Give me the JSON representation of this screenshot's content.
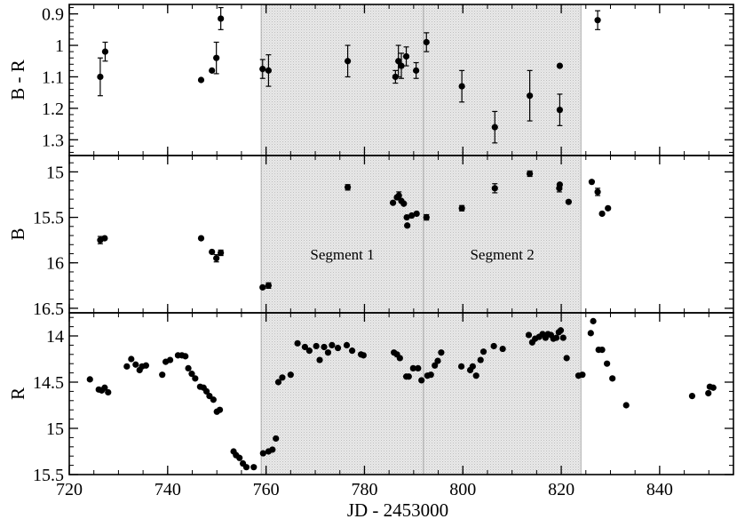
{
  "chart_data": {
    "type": "scatter",
    "xlabel": "JD - 2453000",
    "xlim": [
      720,
      855
    ],
    "x_ticks": [
      "720",
      "740",
      "760",
      "780",
      "800",
      "820",
      "840"
    ],
    "shaded_regions": [
      {
        "label": "Segment 1",
        "x": [
          759,
          792
        ]
      },
      {
        "label": "Segment 2",
        "x": [
          792,
          824
        ]
      }
    ],
    "panels": [
      {
        "ylabel": "B - R",
        "ylim": [
          1.35,
          0.87
        ],
        "y_ticks": [
          "0.9",
          "1",
          "1.1",
          "1.2",
          "1.3"
        ],
        "points": [
          {
            "x": 726.3,
            "y": 1.1,
            "err": 0.06
          },
          {
            "x": 727.3,
            "y": 1.02,
            "err": 0.03
          },
          {
            "x": 746.8,
            "y": 1.11,
            "err": 0.0
          },
          {
            "x": 749.0,
            "y": 1.08,
            "err": 0.0
          },
          {
            "x": 749.9,
            "y": 1.04,
            "err": 0.05
          },
          {
            "x": 750.8,
            "y": 0.915,
            "err": 0.035
          },
          {
            "x": 759.3,
            "y": 1.075,
            "err": 0.03
          },
          {
            "x": 760.5,
            "y": 1.08,
            "err": 0.05
          },
          {
            "x": 776.6,
            "y": 1.05,
            "err": 0.05
          },
          {
            "x": 786.3,
            "y": 1.1,
            "err": 0.02
          },
          {
            "x": 786.9,
            "y": 1.05,
            "err": 0.05
          },
          {
            "x": 787.5,
            "y": 1.065,
            "err": 0.04
          },
          {
            "x": 788.5,
            "y": 1.035,
            "err": 0.03
          },
          {
            "x": 790.5,
            "y": 1.08,
            "err": 0.025
          },
          {
            "x": 792.6,
            "y": 0.99,
            "err": 0.03
          },
          {
            "x": 799.8,
            "y": 1.13,
            "err": 0.05
          },
          {
            "x": 806.5,
            "y": 1.26,
            "err": 0.05
          },
          {
            "x": 813.6,
            "y": 1.16,
            "err": 0.08
          },
          {
            "x": 819.7,
            "y": 1.065,
            "err": 0.0
          },
          {
            "x": 819.7,
            "y": 1.205,
            "err": 0.05
          },
          {
            "x": 827.4,
            "y": 0.92,
            "err": 0.03
          }
        ]
      },
      {
        "ylabel": "B",
        "ylim": [
          16.55,
          14.82
        ],
        "y_ticks": [
          "15",
          "15.5",
          "16",
          "16.5"
        ],
        "annotations": [
          "Segment 1",
          "Segment 2"
        ],
        "points": [
          {
            "x": 726.3,
            "y": 15.75,
            "err": 0.04
          },
          {
            "x": 727.2,
            "y": 15.73,
            "err": 0.0
          },
          {
            "x": 746.8,
            "y": 15.73,
            "err": 0.0
          },
          {
            "x": 749.0,
            "y": 15.88,
            "err": 0.0
          },
          {
            "x": 749.9,
            "y": 15.95,
            "err": 0.04
          },
          {
            "x": 750.8,
            "y": 15.89,
            "err": 0.03
          },
          {
            "x": 759.3,
            "y": 16.27,
            "err": 0.0
          },
          {
            "x": 760.5,
            "y": 16.25,
            "err": 0.03
          },
          {
            "x": 776.6,
            "y": 15.17,
            "err": 0.03
          },
          {
            "x": 785.8,
            "y": 15.34,
            "err": 0.0
          },
          {
            "x": 786.6,
            "y": 15.28,
            "err": 0.0
          },
          {
            "x": 787.0,
            "y": 15.26,
            "err": 0.04
          },
          {
            "x": 787.5,
            "y": 15.32,
            "err": 0.0
          },
          {
            "x": 788.0,
            "y": 15.35,
            "err": 0.0
          },
          {
            "x": 788.6,
            "y": 15.5,
            "err": 0.0
          },
          {
            "x": 788.7,
            "y": 15.59,
            "err": 0.0
          },
          {
            "x": 789.6,
            "y": 15.48,
            "err": 0.0
          },
          {
            "x": 790.6,
            "y": 15.46,
            "err": 0.0
          },
          {
            "x": 792.6,
            "y": 15.5,
            "err": 0.03
          },
          {
            "x": 799.8,
            "y": 15.4,
            "err": 0.03
          },
          {
            "x": 806.5,
            "y": 15.18,
            "err": 0.05
          },
          {
            "x": 813.6,
            "y": 15.02,
            "err": 0.03
          },
          {
            "x": 819.6,
            "y": 15.18,
            "err": 0.04
          },
          {
            "x": 819.7,
            "y": 15.14,
            "err": 0.0
          },
          {
            "x": 821.5,
            "y": 15.33,
            "err": 0.0
          },
          {
            "x": 826.2,
            "y": 15.11,
            "err": 0.0
          },
          {
            "x": 827.4,
            "y": 15.22,
            "err": 0.04
          },
          {
            "x": 828.3,
            "y": 15.46,
            "err": 0.0
          },
          {
            "x": 829.5,
            "y": 15.4,
            "err": 0.0
          }
        ]
      },
      {
        "ylabel": "R",
        "ylim": [
          15.5,
          13.75
        ],
        "y_ticks": [
          "14",
          "14.5",
          "15",
          "15.5"
        ],
        "points": [
          {
            "x": 724.2,
            "y": 14.47
          },
          {
            "x": 726.0,
            "y": 14.58
          },
          {
            "x": 726.6,
            "y": 14.59
          },
          {
            "x": 727.2,
            "y": 14.56
          },
          {
            "x": 727.9,
            "y": 14.61
          },
          {
            "x": 731.7,
            "y": 14.33
          },
          {
            "x": 732.6,
            "y": 14.25
          },
          {
            "x": 733.5,
            "y": 14.31
          },
          {
            "x": 734.3,
            "y": 14.37
          },
          {
            "x": 734.8,
            "y": 14.33
          },
          {
            "x": 735.6,
            "y": 14.32
          },
          {
            "x": 738.9,
            "y": 14.42
          },
          {
            "x": 739.6,
            "y": 14.28
          },
          {
            "x": 740.5,
            "y": 14.26
          },
          {
            "x": 742.1,
            "y": 14.21
          },
          {
            "x": 742.9,
            "y": 14.21
          },
          {
            "x": 743.6,
            "y": 14.22
          },
          {
            "x": 744.2,
            "y": 14.35
          },
          {
            "x": 744.9,
            "y": 14.41
          },
          {
            "x": 745.6,
            "y": 14.46
          },
          {
            "x": 746.6,
            "y": 14.55
          },
          {
            "x": 747.3,
            "y": 14.56
          },
          {
            "x": 747.9,
            "y": 14.6
          },
          {
            "x": 748.5,
            "y": 14.65
          },
          {
            "x": 749.3,
            "y": 14.69
          },
          {
            "x": 750.0,
            "y": 14.82
          },
          {
            "x": 750.6,
            "y": 14.8
          },
          {
            "x": 753.4,
            "y": 15.25
          },
          {
            "x": 753.9,
            "y": 15.29
          },
          {
            "x": 754.6,
            "y": 15.32
          },
          {
            "x": 755.3,
            "y": 15.38
          },
          {
            "x": 756.0,
            "y": 15.42
          },
          {
            "x": 757.5,
            "y": 15.42
          },
          {
            "x": 759.4,
            "y": 15.27
          },
          {
            "x": 760.5,
            "y": 15.25
          },
          {
            "x": 761.3,
            "y": 15.23
          },
          {
            "x": 762.0,
            "y": 15.11
          },
          {
            "x": 762.5,
            "y": 14.5
          },
          {
            "x": 763.3,
            "y": 14.45
          },
          {
            "x": 765.0,
            "y": 14.42
          },
          {
            "x": 766.4,
            "y": 14.08
          },
          {
            "x": 767.9,
            "y": 14.12
          },
          {
            "x": 768.8,
            "y": 14.16
          },
          {
            "x": 770.2,
            "y": 14.11
          },
          {
            "x": 770.9,
            "y": 14.26
          },
          {
            "x": 771.8,
            "y": 14.12
          },
          {
            "x": 772.6,
            "y": 14.18
          },
          {
            "x": 773.4,
            "y": 14.1
          },
          {
            "x": 774.6,
            "y": 14.13
          },
          {
            "x": 776.4,
            "y": 14.1
          },
          {
            "x": 777.5,
            "y": 14.16
          },
          {
            "x": 779.3,
            "y": 14.2
          },
          {
            "x": 779.8,
            "y": 14.21
          },
          {
            "x": 786.0,
            "y": 14.18
          },
          {
            "x": 786.6,
            "y": 14.2
          },
          {
            "x": 787.2,
            "y": 14.24
          },
          {
            "x": 788.5,
            "y": 14.44
          },
          {
            "x": 789.0,
            "y": 14.44
          },
          {
            "x": 789.9,
            "y": 14.35
          },
          {
            "x": 790.9,
            "y": 14.35
          },
          {
            "x": 791.6,
            "y": 14.48
          },
          {
            "x": 792.8,
            "y": 14.43
          },
          {
            "x": 793.5,
            "y": 14.42
          },
          {
            "x": 794.3,
            "y": 14.32
          },
          {
            "x": 794.9,
            "y": 14.27
          },
          {
            "x": 795.6,
            "y": 14.18
          },
          {
            "x": 799.7,
            "y": 14.33
          },
          {
            "x": 801.5,
            "y": 14.37
          },
          {
            "x": 802.0,
            "y": 14.33
          },
          {
            "x": 802.7,
            "y": 14.43
          },
          {
            "x": 803.6,
            "y": 14.26
          },
          {
            "x": 804.2,
            "y": 14.17
          },
          {
            "x": 806.3,
            "y": 14.11
          },
          {
            "x": 808.1,
            "y": 14.14
          },
          {
            "x": 813.4,
            "y": 13.99
          },
          {
            "x": 814.1,
            "y": 14.07
          },
          {
            "x": 814.7,
            "y": 14.03
          },
          {
            "x": 815.5,
            "y": 14.01
          },
          {
            "x": 816.2,
            "y": 13.98
          },
          {
            "x": 816.8,
            "y": 14.02
          },
          {
            "x": 817.3,
            "y": 13.98
          },
          {
            "x": 817.9,
            "y": 13.99
          },
          {
            "x": 818.4,
            "y": 14.03
          },
          {
            "x": 819.0,
            "y": 14.02
          },
          {
            "x": 819.5,
            "y": 13.96
          },
          {
            "x": 819.9,
            "y": 13.94
          },
          {
            "x": 820.4,
            "y": 14.02
          },
          {
            "x": 821.1,
            "y": 14.24
          },
          {
            "x": 823.5,
            "y": 14.43
          },
          {
            "x": 824.3,
            "y": 14.42
          },
          {
            "x": 826.0,
            "y": 13.97
          },
          {
            "x": 826.5,
            "y": 13.84
          },
          {
            "x": 827.6,
            "y": 14.15
          },
          {
            "x": 828.3,
            "y": 14.15
          },
          {
            "x": 829.3,
            "y": 14.3
          },
          {
            "x": 830.4,
            "y": 14.46
          },
          {
            "x": 833.2,
            "y": 14.75
          },
          {
            "x": 846.6,
            "y": 14.65
          },
          {
            "x": 849.9,
            "y": 14.62
          },
          {
            "x": 850.2,
            "y": 14.55
          },
          {
            "x": 850.9,
            "y": 14.56
          }
        ]
      }
    ]
  }
}
